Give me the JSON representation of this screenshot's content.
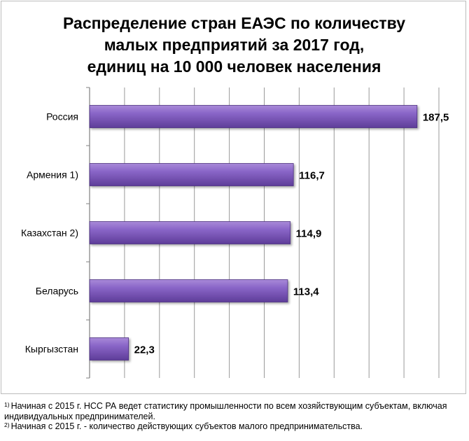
{
  "chart_data": {
    "type": "bar",
    "orientation": "horizontal",
    "title_lines": [
      "Распределение стран ЕАЭС по количеству",
      "малых предприятий за 2017 год,",
      "единиц на 10 000 человек населения"
    ],
    "categories": [
      "Россия",
      "Армения 1)",
      "Казахстан 2)",
      "Беларусь",
      "Кыргызстан"
    ],
    "values": [
      187.5,
      116.7,
      114.9,
      113.4,
      22.3
    ],
    "value_labels": [
      "187,5",
      "116,7",
      "114,9",
      "113,4",
      "22,3"
    ],
    "xlim": [
      0,
      200
    ],
    "grid": "vertical",
    "bar_color": "#7a56b8",
    "legend": "none"
  },
  "footnotes": [
    {
      "marker": "1)",
      "text": "Начиная с 2015 г. НСС РА ведет статистику промышленности по всем хозяйствующим субъектам, включая индивидуальных предпринимателей."
    },
    {
      "marker": "2)",
      "text": "Начиная с 2015 г. - количество действующих субъектов малого предпринимательства."
    }
  ]
}
